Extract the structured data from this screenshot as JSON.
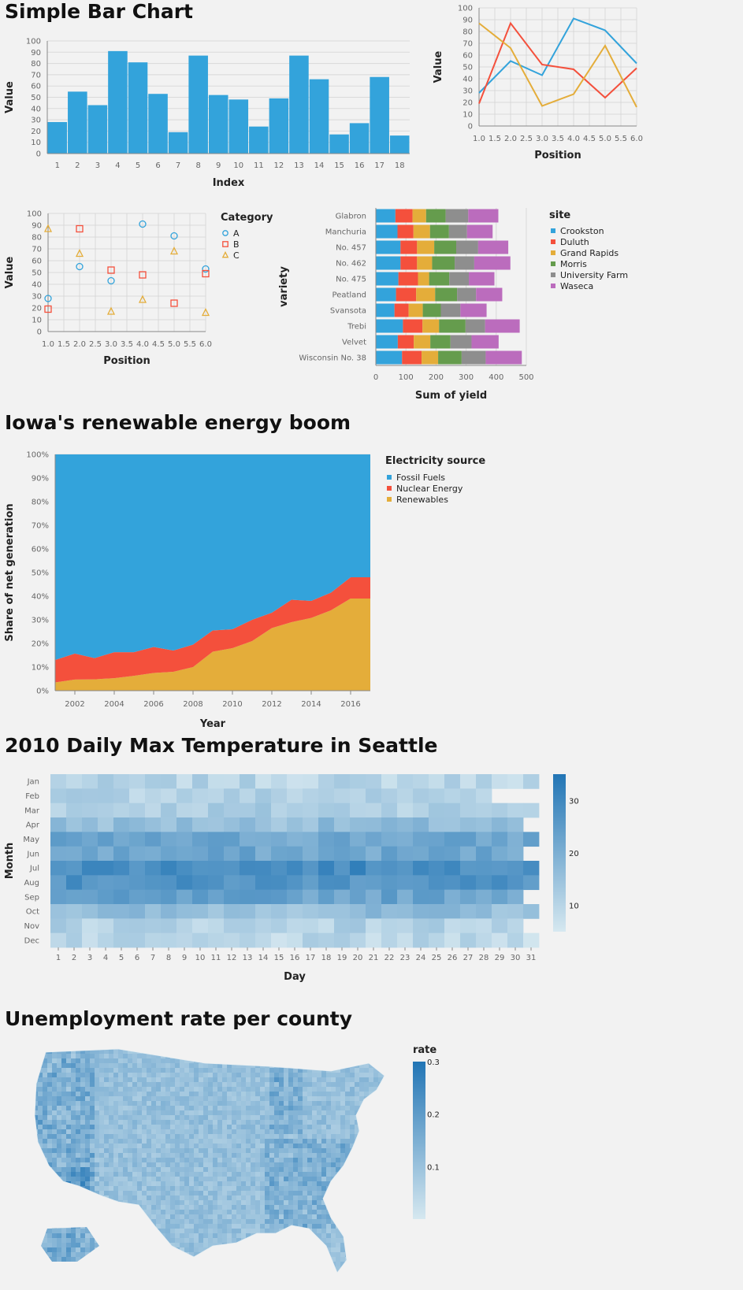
{
  "titles": {
    "bar": "Simple Bar Chart",
    "area": "Iowa's renewable energy boom",
    "heat": "2010 Daily Max Temperature in Seattle",
    "map": "Unemployment rate per county"
  },
  "chart_data": [
    {
      "id": "bar",
      "type": "bar",
      "title": "Simple Bar Chart",
      "xlabel": "Index",
      "ylabel": "Value",
      "ylim": [
        0,
        100
      ],
      "yticks": [
        0,
        10,
        20,
        30,
        40,
        50,
        60,
        70,
        80,
        90,
        100
      ],
      "categories": [
        "1",
        "2",
        "3",
        "4",
        "5",
        "6",
        "7",
        "8",
        "9",
        "10",
        "11",
        "12",
        "13",
        "14",
        "15",
        "16",
        "17",
        "18"
      ],
      "values": [
        28,
        55,
        43,
        91,
        81,
        53,
        19,
        87,
        52,
        48,
        24,
        49,
        87,
        66,
        17,
        27,
        68,
        16
      ],
      "color": "#33a3db"
    },
    {
      "id": "line",
      "type": "line",
      "xlabel": "Position",
      "ylabel": "Value",
      "xlim": [
        1,
        6
      ],
      "ylim": [
        0,
        100
      ],
      "xticks": [
        "1.0",
        "1.5",
        "2.0",
        "2.5",
        "3.0",
        "3.5",
        "4.0",
        "4.5",
        "5.0",
        "5.5",
        "6.0"
      ],
      "yticks": [
        0,
        10,
        20,
        30,
        40,
        50,
        60,
        70,
        80,
        90,
        100
      ],
      "x": [
        1,
        2,
        3,
        4,
        5,
        6
      ],
      "series": [
        {
          "values": [
            28,
            55,
            43,
            91,
            81,
            53
          ],
          "color": "#33a3db"
        },
        {
          "values": [
            19,
            87,
            52,
            48,
            24,
            49
          ],
          "color": "#f4503c"
        },
        {
          "values": [
            87,
            66,
            17,
            27,
            68,
            16
          ],
          "color": "#e4ad3a"
        }
      ]
    },
    {
      "id": "scatter",
      "type": "scatter",
      "xlabel": "Position",
      "ylabel": "Value",
      "xlim": [
        1,
        6
      ],
      "ylim": [
        0,
        100
      ],
      "xticks": [
        "1.0",
        "1.5",
        "2.0",
        "2.5",
        "3.0",
        "3.5",
        "4.0",
        "4.5",
        "5.0",
        "5.5",
        "6.0"
      ],
      "yticks": [
        0,
        10,
        20,
        30,
        40,
        50,
        60,
        70,
        80,
        90,
        100
      ],
      "x": [
        1,
        2,
        3,
        4,
        5,
        6
      ],
      "legend_title": "Category",
      "series": [
        {
          "name": "A",
          "shape": "circle",
          "color": "#33a3db",
          "values": [
            28,
            55,
            43,
            91,
            81,
            53
          ]
        },
        {
          "name": "B",
          "shape": "square",
          "color": "#f4503c",
          "values": [
            19,
            87,
            52,
            48,
            24,
            49
          ]
        },
        {
          "name": "C",
          "shape": "triangle",
          "color": "#e4ad3a",
          "values": [
            87,
            66,
            17,
            27,
            68,
            16
          ]
        }
      ]
    },
    {
      "id": "stacked",
      "type": "bar",
      "orientation": "horizontal",
      "stacked": true,
      "xlabel": "Sum of yield",
      "ylabel": "variety",
      "xlim": [
        0,
        500
      ],
      "xticks": [
        0,
        100,
        200,
        300,
        400,
        500
      ],
      "categories": [
        "Glabron",
        "Manchuria",
        "No. 457",
        "No. 462",
        "No. 475",
        "Peatland",
        "Svansota",
        "Trebi",
        "Velvet",
        "Wisconsin No. 38"
      ],
      "legend_title": "site",
      "series": [
        {
          "name": "Crookston",
          "color": "#33a3db",
          "values": [
            65,
            72,
            82,
            82,
            75,
            67,
            62,
            90,
            73,
            87
          ]
        },
        {
          "name": "Duluth",
          "color": "#f4503c",
          "values": [
            57,
            53,
            55,
            55,
            65,
            67,
            47,
            65,
            53,
            65
          ]
        },
        {
          "name": "Grand Rapids",
          "color": "#e4ad3a",
          "values": [
            45,
            55,
            57,
            50,
            37,
            63,
            47,
            55,
            55,
            55
          ]
        },
        {
          "name": "Morris",
          "color": "#659c4d",
          "values": [
            65,
            63,
            73,
            75,
            67,
            73,
            60,
            88,
            67,
            78
          ]
        },
        {
          "name": "University Farm",
          "color": "#8e8e8e",
          "values": [
            75,
            60,
            73,
            65,
            65,
            63,
            65,
            65,
            70,
            80
          ]
        },
        {
          "name": "Waseca",
          "color": "#bb6cbd",
          "values": [
            100,
            85,
            100,
            120,
            85,
            87,
            87,
            115,
            90,
            120
          ]
        }
      ]
    },
    {
      "id": "area",
      "type": "area",
      "stacked": true,
      "normalized": true,
      "title": "Iowa's renewable energy boom",
      "xlabel": "Year",
      "ylabel": "Share of net generation",
      "xlim": [
        2001,
        2017
      ],
      "xticks": [
        2002,
        2004,
        2006,
        2008,
        2010,
        2012,
        2014,
        2016
      ],
      "ylim": [
        0,
        1
      ],
      "yticks": [
        "0%",
        "10%",
        "20%",
        "30%",
        "40%",
        "50%",
        "60%",
        "70%",
        "80%",
        "90%",
        "100%"
      ],
      "legend_title": "Electricity source",
      "x": [
        2001,
        2002,
        2003,
        2004,
        2005,
        2006,
        2007,
        2008,
        2009,
        2010,
        2011,
        2012,
        2013,
        2014,
        2015,
        2016,
        2017
      ],
      "series": [
        {
          "name": "Renewables",
          "color": "#e4ad3a",
          "values": [
            0.035,
            0.047,
            0.048,
            0.053,
            0.063,
            0.075,
            0.08,
            0.1,
            0.165,
            0.18,
            0.21,
            0.265,
            0.29,
            0.308,
            0.34,
            0.39,
            0.39
          ]
        },
        {
          "name": "Nuclear Energy",
          "color": "#f4503c",
          "values": [
            0.095,
            0.11,
            0.09,
            0.11,
            0.1,
            0.11,
            0.09,
            0.095,
            0.09,
            0.08,
            0.09,
            0.065,
            0.095,
            0.072,
            0.075,
            0.09,
            0.09
          ]
        },
        {
          "name": "Fossil Fuels",
          "color": "#33a3db",
          "values": [
            0.87,
            0.843,
            0.862,
            0.837,
            0.837,
            0.815,
            0.83,
            0.805,
            0.745,
            0.74,
            0.7,
            0.67,
            0.615,
            0.62,
            0.585,
            0.52,
            0.52
          ]
        }
      ]
    },
    {
      "id": "heat",
      "type": "heatmap",
      "title": "2010 Daily Max Temperature in Seattle",
      "xlabel": "Day",
      "ylabel": "Month",
      "x": [
        "1",
        "2",
        "3",
        "4",
        "5",
        "6",
        "7",
        "8",
        "9",
        "10",
        "11",
        "12",
        "13",
        "14",
        "15",
        "16",
        "17",
        "18",
        "19",
        "20",
        "21",
        "22",
        "23",
        "24",
        "25",
        "26",
        "27",
        "28",
        "29",
        "30",
        "31"
      ],
      "y": [
        "Jan",
        "Feb",
        "Mar",
        "Apr",
        "May",
        "Jun",
        "Jul",
        "Aug",
        "Sep",
        "Oct",
        "Nov",
        "Dec"
      ],
      "month_days": [
        31,
        28,
        31,
        30,
        31,
        30,
        31,
        31,
        30,
        31,
        30,
        31
      ],
      "monthly_mean": [
        10,
        11,
        12,
        16,
        22,
        22,
        29,
        27,
        23,
        16,
        11,
        9
      ],
      "color_range": [
        5,
        35
      ],
      "legend_ticks": [
        10,
        20,
        30
      ]
    },
    {
      "id": "map",
      "type": "choropleth",
      "title": "Unemployment rate per county",
      "legend_title": "rate",
      "legend_ticks": [
        "0.1",
        "0.2",
        "0.3"
      ],
      "color_range": [
        0,
        0.3
      ]
    }
  ]
}
